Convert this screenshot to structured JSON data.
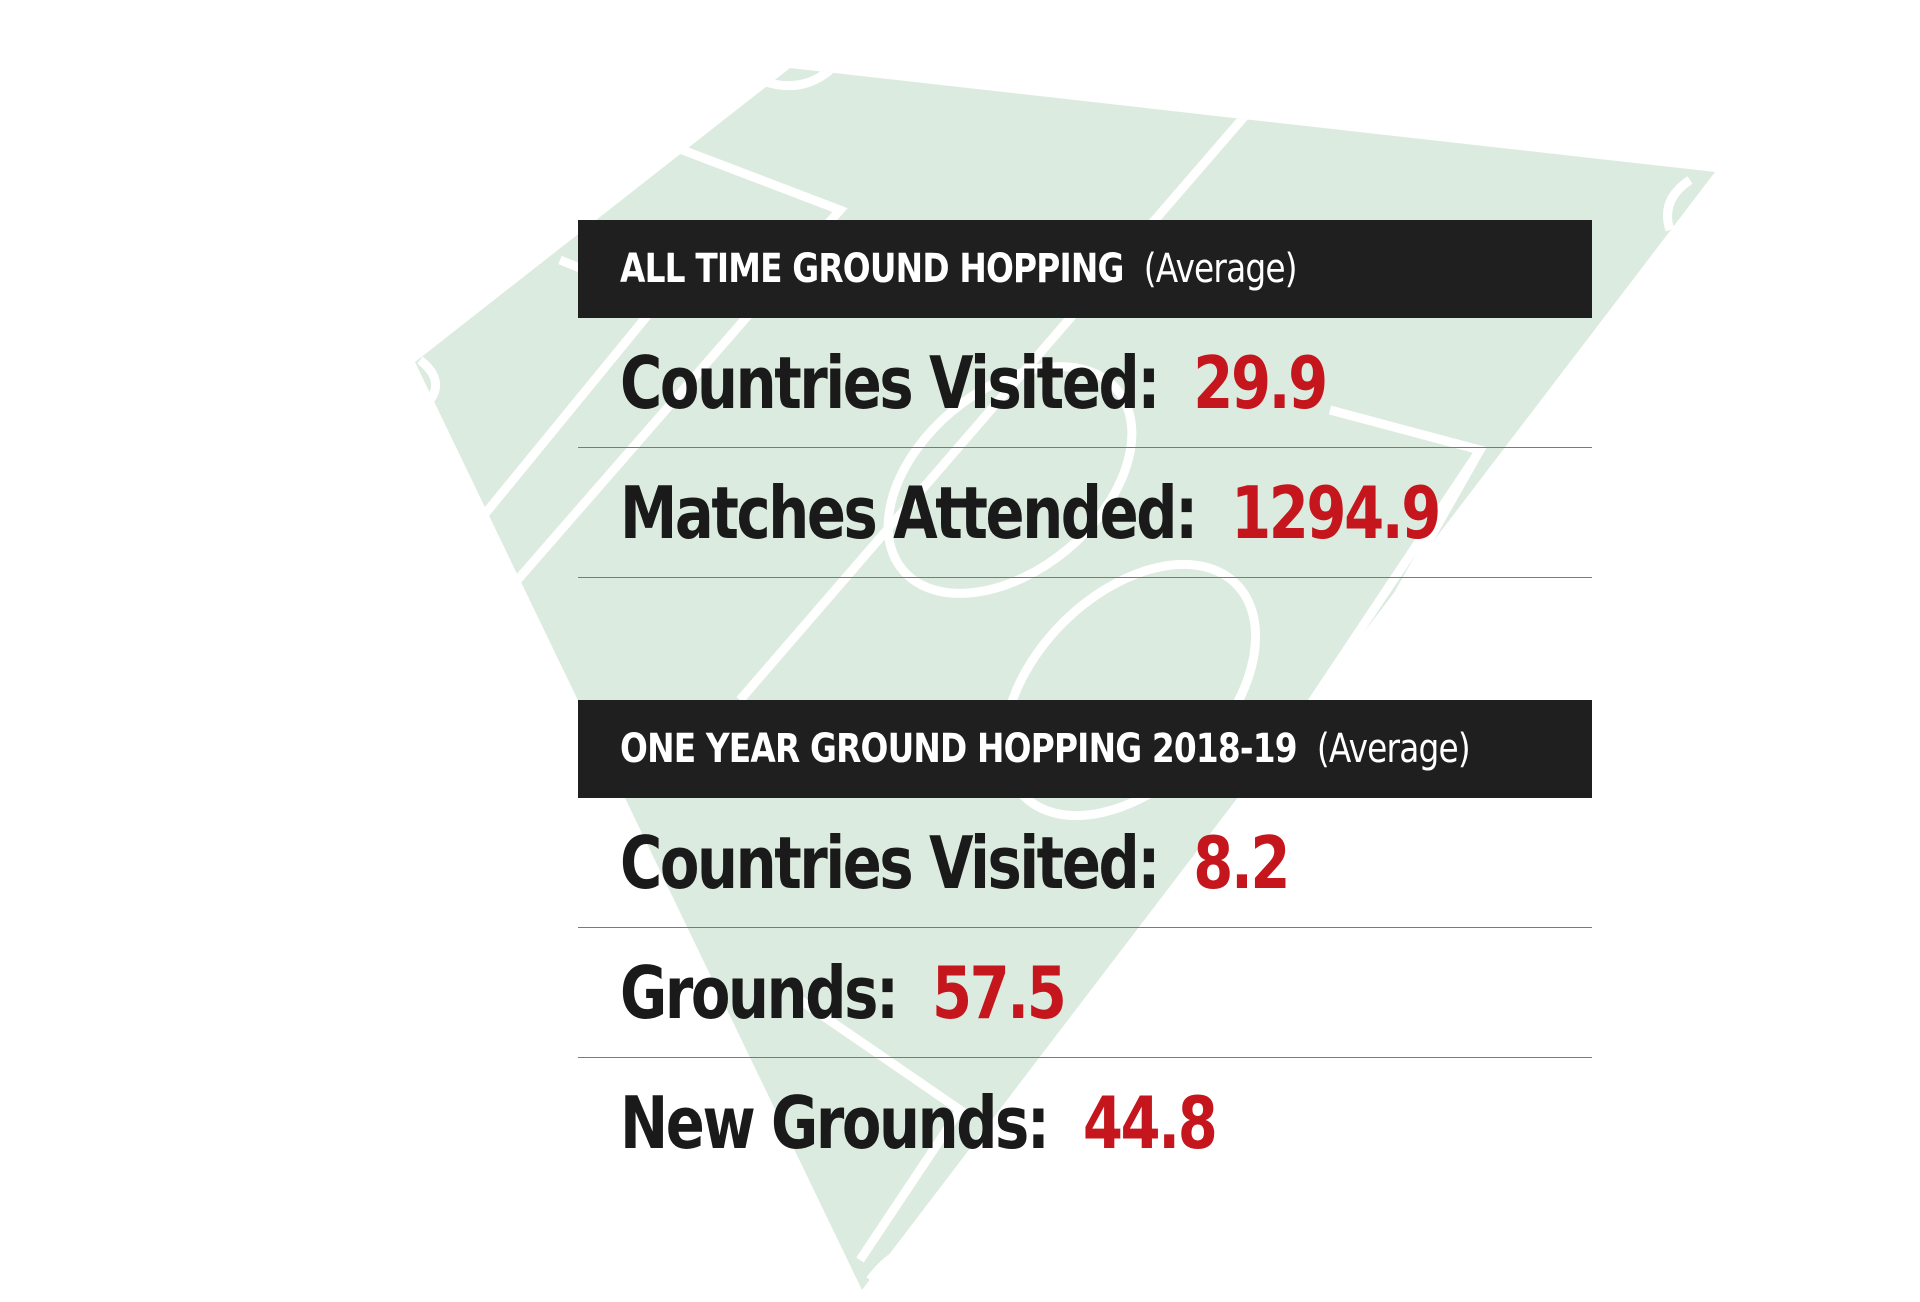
{
  "colors": {
    "pitch_fill": "#dcebdf",
    "pitch_lines": "#ffffff",
    "bar_background": "#1f1f1f",
    "bar_text": "#ffffff",
    "label_text": "#1a1a1a",
    "value_text": "#c4161c",
    "divider": "#7a7a7a"
  },
  "sections": [
    {
      "title": "ALL TIME GROUND HOPPING",
      "title_suffix": "(Average)",
      "stats": [
        {
          "label": "Countries Visited:",
          "value": "29.9"
        },
        {
          "label": "Matches Attended:",
          "value": "1294.9"
        }
      ]
    },
    {
      "title": "ONE YEAR GROUND HOPPING 2018-19",
      "title_suffix": "(Average)",
      "stats": [
        {
          "label": "Countries Visited:",
          "value": "8.2"
        },
        {
          "label": "Grounds:",
          "value": "57.5"
        },
        {
          "label": "New Grounds:",
          "value": "44.8"
        }
      ]
    }
  ]
}
